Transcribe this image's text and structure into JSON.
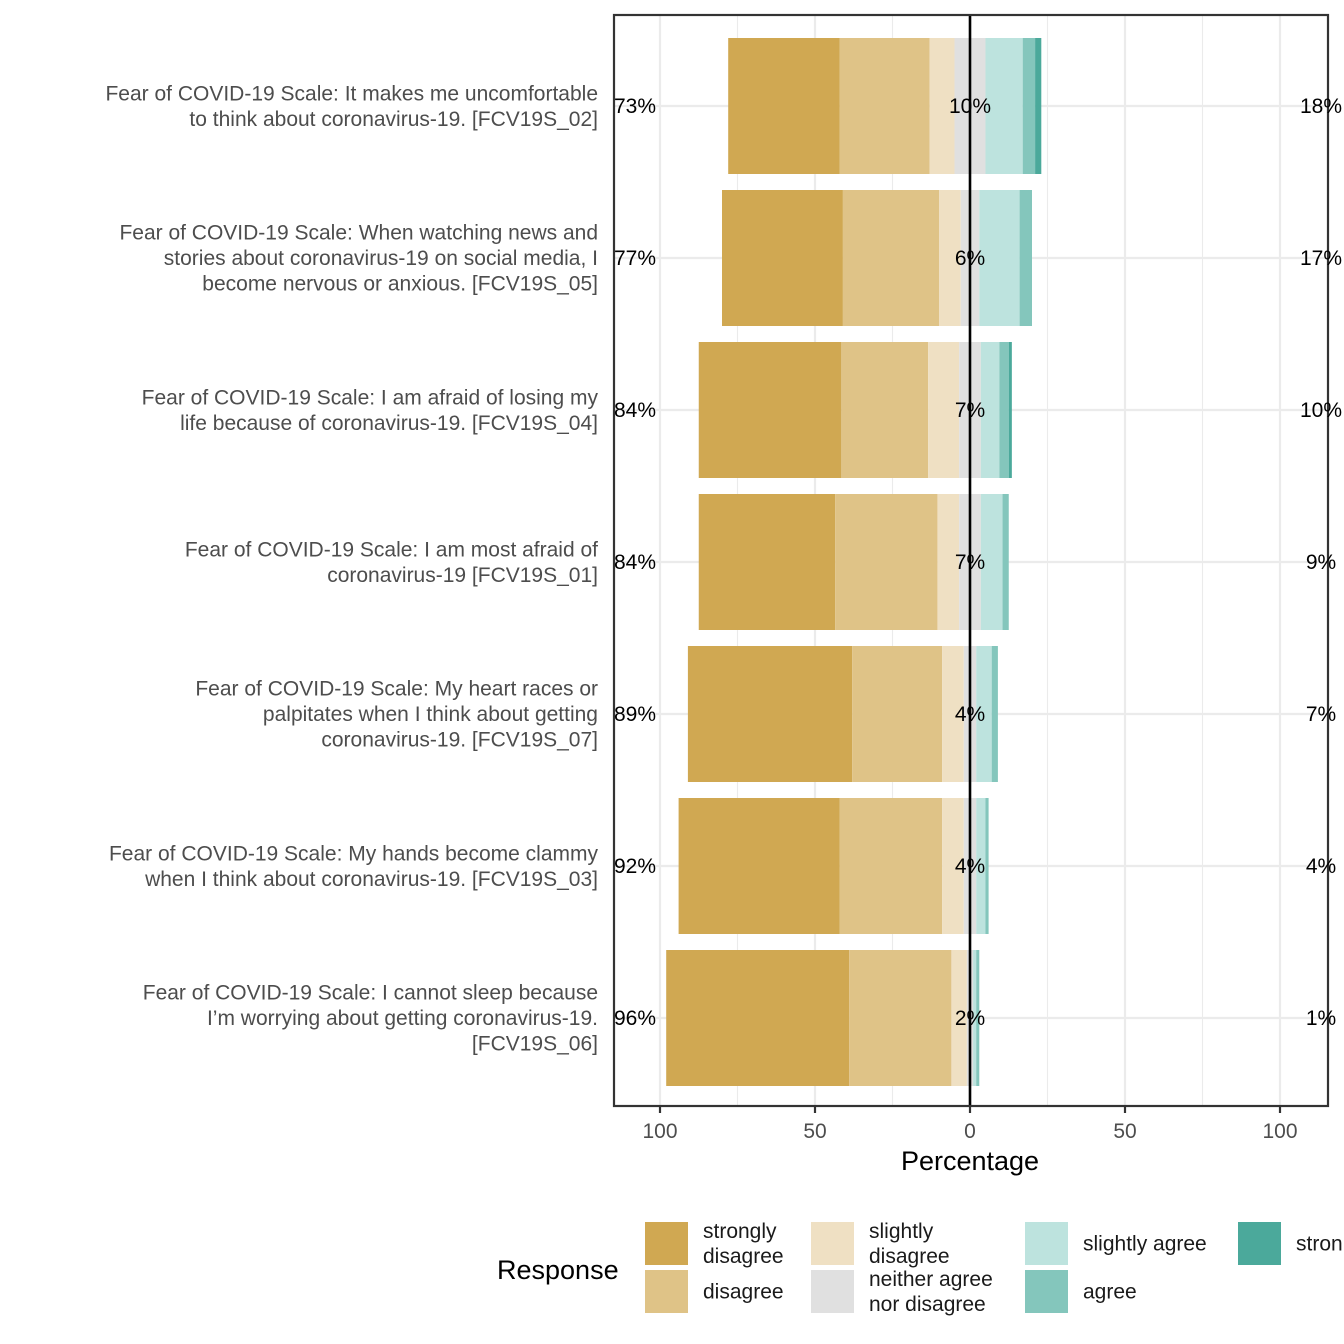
{
  "chart_data": {
    "type": "bar",
    "subtype": "diverging-stacked-likert",
    "xlabel": "Percentage",
    "xlim": [
      -100,
      100
    ],
    "x_ticks": [
      -100,
      -50,
      0,
      50,
      100
    ],
    "x_tick_labels": [
      "100",
      "50",
      "0",
      "50",
      "100"
    ],
    "grid": true,
    "legend_position": "bottom",
    "legend": {
      "title": "Response",
      "entries": [
        {
          "label": "strongly disagree",
          "lines": [
            "strongly",
            "disagree"
          ],
          "color": "#D0A852"
        },
        {
          "label": "disagree",
          "lines": [
            "disagree"
          ],
          "color": "#DFC387"
        },
        {
          "label": "slightly disagree",
          "lines": [
            "slightly",
            "disagree"
          ],
          "color": "#EFE0C3"
        },
        {
          "label": "neither agree nor disagree",
          "lines": [
            "neither agree",
            "nor disagree"
          ],
          "color": "#E0E0E0"
        },
        {
          "label": "slightly agree",
          "lines": [
            "slightly agree"
          ],
          "color": "#BDE3DE"
        },
        {
          "label": "agree",
          "lines": [
            "agree"
          ],
          "color": "#84C6BC"
        },
        {
          "label": "strongly agree",
          "lines": [
            "stron"
          ],
          "color": "#4BA99B"
        }
      ]
    },
    "categories": [
      {
        "lines": [
          "Fear of COVID-19 Scale: It makes me uncomfortable",
          "to think about coronavirus-19. [FCV19S_02]"
        ],
        "values": [
          36,
          29,
          8,
          10,
          12,
          4,
          2
        ],
        "left_label": "73%",
        "center_label": "10%",
        "right_label": "18%"
      },
      {
        "lines": [
          "Fear of COVID-19 Scale: When watching news and",
          "stories about coronavirus-19 on social media, I",
          "become nervous or anxious. [FCV19S_05]"
        ],
        "values": [
          39,
          31,
          7,
          6,
          13,
          4,
          0
        ],
        "left_label": "77%",
        "center_label": "6%",
        "right_label": "17%"
      },
      {
        "lines": [
          "Fear of COVID-19 Scale: I am afraid of losing my",
          "life because of coronavirus-19. [FCV19S_04]"
        ],
        "values": [
          46,
          28,
          10,
          7,
          6,
          3,
          1
        ],
        "left_label": "84%",
        "center_label": "7%",
        "right_label": "10%"
      },
      {
        "lines": [
          "Fear of COVID-19 Scale: I am most afraid of",
          "coronavirus-19 [FCV19S_01]"
        ],
        "values": [
          44,
          33,
          7,
          7,
          7,
          2,
          0
        ],
        "left_label": "84%",
        "center_label": "7%",
        "right_label": "9%"
      },
      {
        "lines": [
          "Fear of COVID-19 Scale: My heart races or",
          "palpitates when I think about getting",
          "coronavirus-19. [FCV19S_07]"
        ],
        "values": [
          53,
          29,
          7,
          4,
          5,
          2,
          0
        ],
        "left_label": "89%",
        "center_label": "4%",
        "right_label": "7%"
      },
      {
        "lines": [
          "Fear of COVID-19 Scale: My hands become clammy",
          "when I think about coronavirus-19. [FCV19S_03]"
        ],
        "values": [
          52,
          33,
          7,
          4,
          3,
          1,
          0
        ],
        "left_label": "92%",
        "center_label": "4%",
        "right_label": "4%"
      },
      {
        "lines": [
          "Fear of COVID-19 Scale: I cannot sleep because",
          "I’m worrying about getting coronavirus-19.",
          "[FCV19S_06]"
        ],
        "values": [
          59,
          33,
          5,
          2,
          1,
          1,
          0
        ],
        "left_label": "96%",
        "center_label": "2%",
        "right_label": "1%"
      }
    ]
  }
}
